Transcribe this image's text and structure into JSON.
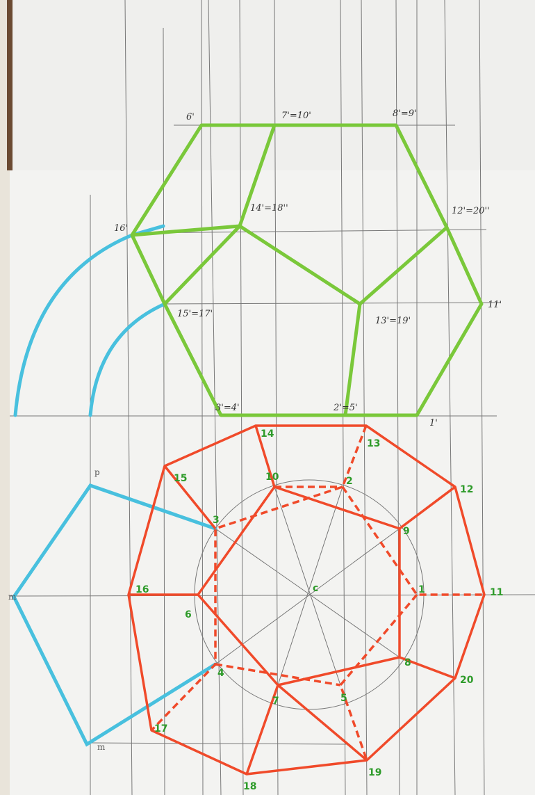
{
  "top_labels": [
    "6'",
    "7'=10'",
    "8'=9'",
    "16'",
    "14'=18''",
    "12'=20''",
    "15'=17'",
    "13'=19'",
    "11'",
    "3'=4'",
    "2'=5'",
    "1'"
  ],
  "bottom_labels": [
    "14",
    "13",
    "15",
    "10",
    "2",
    "12",
    "3",
    "9",
    "16",
    "6",
    "c",
    "1",
    "11",
    "4",
    "8",
    "17",
    "7",
    "5",
    "20",
    "18",
    "19"
  ],
  "blue_labels": [
    "p",
    "m",
    "m"
  ]
}
